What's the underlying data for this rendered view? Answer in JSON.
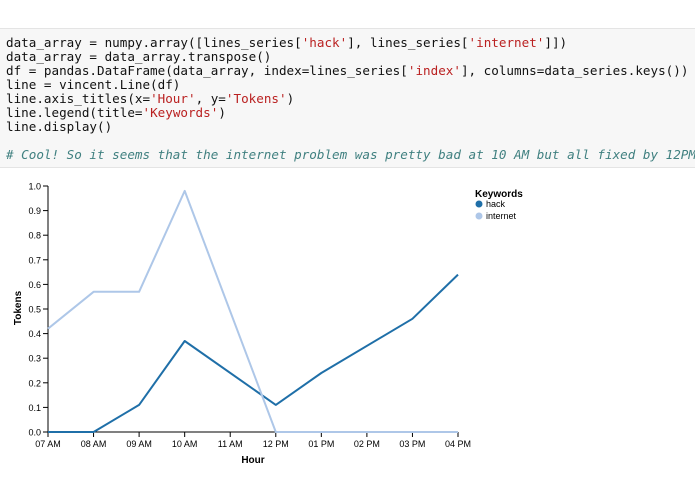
{
  "code_cell": {
    "lines": [
      {
        "segments": [
          {
            "text": "data_array = numpy.array([lines_series[",
            "kind": "code"
          },
          {
            "text": "'hack'",
            "kind": "string"
          },
          {
            "text": "], lines_series[",
            "kind": "code"
          },
          {
            "text": "'internet'",
            "kind": "string"
          },
          {
            "text": "]])",
            "kind": "code"
          }
        ]
      },
      {
        "segments": [
          {
            "text": "data_array = data_array.transpose()",
            "kind": "code"
          }
        ]
      },
      {
        "segments": [
          {
            "text": "df = pandas.DataFrame(data_array, index=lines_series[",
            "kind": "code"
          },
          {
            "text": "'index'",
            "kind": "string"
          },
          {
            "text": "], columns=data_series.keys())",
            "kind": "code"
          }
        ]
      },
      {
        "segments": [
          {
            "text": "line = vincent.Line(df)",
            "kind": "code"
          }
        ]
      },
      {
        "segments": [
          {
            "text": "line.axis_titles(x=",
            "kind": "code"
          },
          {
            "text": "'Hour'",
            "kind": "string"
          },
          {
            "text": ", y=",
            "kind": "code"
          },
          {
            "text": "'Tokens'",
            "kind": "string"
          },
          {
            "text": ")",
            "kind": "code"
          }
        ]
      },
      {
        "segments": [
          {
            "text": "line.legend(title=",
            "kind": "code"
          },
          {
            "text": "'Keywords'",
            "kind": "string"
          },
          {
            "text": ")",
            "kind": "code"
          }
        ]
      },
      {
        "segments": [
          {
            "text": "line.display()",
            "kind": "code"
          }
        ]
      }
    ],
    "comment": "# Cool! So it seems that the internet problem was pretty bad at 10 AM but all fixed by 12PM.",
    "colors": {
      "string": "#ba2121",
      "comment": "#408080",
      "background": "#f7f7f7"
    }
  },
  "chart_data": {
    "type": "line",
    "xlabel": "Hour",
    "ylabel": "Tokens",
    "categories": [
      "07 AM",
      "08 AM",
      "09 AM",
      "10 AM",
      "11 AM",
      "12 PM",
      "01 PM",
      "02 PM",
      "03 PM",
      "04 PM"
    ],
    "ylim": [
      0,
      1
    ],
    "yticks": [
      "0.0",
      "0.1",
      "0.2",
      "0.3",
      "0.4",
      "0.5",
      "0.6",
      "0.7",
      "0.8",
      "0.9",
      "1.0"
    ],
    "grid": false,
    "legend": {
      "title": "Keywords",
      "position": "top-right"
    },
    "series": [
      {
        "name": "hack",
        "color": "#1f6fa8",
        "values": [
          0,
          0,
          0.11,
          0.37,
          null,
          0.11,
          0.24,
          null,
          0.46,
          0.64
        ]
      },
      {
        "name": "internet",
        "color": "#aec7e8",
        "values": [
          0.42,
          0.57,
          0.57,
          0.98,
          null,
          0,
          0,
          null,
          0,
          0
        ]
      }
    ]
  }
}
